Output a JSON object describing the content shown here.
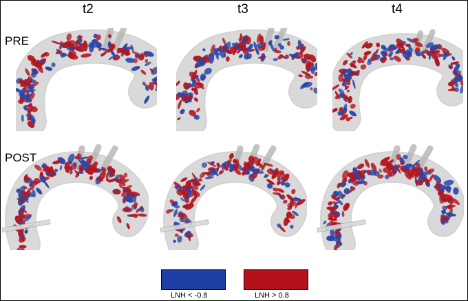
{
  "columns": [
    "t2",
    "t3",
    "t4"
  ],
  "rows": [
    "PRE",
    "POST"
  ],
  "legend": [
    {
      "label": "LNH < -0.8",
      "color": "#1f3fa6"
    },
    {
      "label": "LNH > 0.8",
      "color": "#b3121a"
    }
  ],
  "colors": {
    "blue": "#2a47a8",
    "red": "#b3161f",
    "vessel": "#d9d9d9",
    "vessel_edge": "#b5b5b5"
  }
}
